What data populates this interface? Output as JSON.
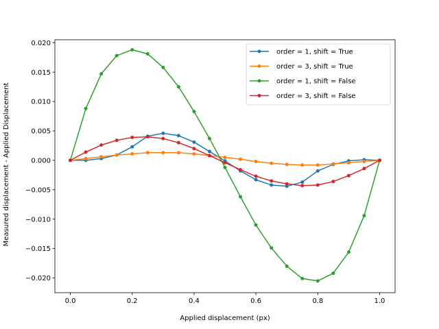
{
  "chart_data": {
    "type": "line",
    "title": "",
    "xlabel": "Applied displacement (px)",
    "ylabel": "Measured displacement - Applied Displacement",
    "xlim": [
      -0.05,
      1.05
    ],
    "ylim": [
      -0.0225,
      0.0205
    ],
    "x_ticks": [
      0.0,
      0.2,
      0.4,
      0.6,
      0.8,
      1.0
    ],
    "x_tick_labels": [
      "0.0",
      "0.2",
      "0.4",
      "0.6",
      "0.8",
      "1.0"
    ],
    "y_ticks": [
      -0.02,
      -0.015,
      -0.01,
      -0.005,
      0.0,
      0.005,
      0.01,
      0.015,
      0.02
    ],
    "y_tick_labels": [
      "−0.020",
      "−0.015",
      "−0.010",
      "−0.005",
      "0.000",
      "0.005",
      "0.010",
      "0.015",
      "0.020"
    ],
    "grid": false,
    "legend_position": "top-right",
    "x": [
      0.0,
      0.05,
      0.1,
      0.15,
      0.2,
      0.25,
      0.3,
      0.35,
      0.4,
      0.45,
      0.5,
      0.55,
      0.6,
      0.65,
      0.7,
      0.75,
      0.8,
      0.85,
      0.9,
      0.95,
      1.0
    ],
    "series": [
      {
        "name": "order = 1, shift = True",
        "color": "#1f77b4",
        "values": [
          0.0,
          0.0,
          0.0003,
          0.0009,
          0.0023,
          0.0041,
          0.0046,
          0.0042,
          0.0031,
          0.0015,
          -0.0001,
          -0.0018,
          -0.0033,
          -0.0042,
          -0.0044,
          -0.0037,
          -0.0018,
          -0.0007,
          -0.0001,
          0.0001,
          0.0
        ]
      },
      {
        "name": "order = 3, shift = True",
        "color": "#ff7f0e",
        "values": [
          0.0,
          0.0003,
          0.0006,
          0.0009,
          0.0011,
          0.0013,
          0.0013,
          0.0013,
          0.0011,
          0.0008,
          0.0005,
          0.0002,
          -0.0002,
          -0.0005,
          -0.0007,
          -0.0008,
          -0.0008,
          -0.0006,
          -0.0004,
          -0.0002,
          0.0
        ]
      },
      {
        "name": "order = 1, shift = False",
        "color": "#2ca02c",
        "values": [
          0.0,
          0.0088,
          0.0147,
          0.0178,
          0.0188,
          0.0181,
          0.0158,
          0.0125,
          0.0083,
          0.0037,
          -0.0012,
          -0.0062,
          -0.011,
          -0.0149,
          -0.018,
          -0.0201,
          -0.0205,
          -0.0192,
          -0.0156,
          -0.0094,
          0.0
        ]
      },
      {
        "name": "order = 3, shift = False",
        "color": "#d62728",
        "values": [
          0.0,
          0.0014,
          0.0026,
          0.0034,
          0.0039,
          0.004,
          0.0037,
          0.003,
          0.002,
          0.0008,
          -0.0004,
          -0.0016,
          -0.0027,
          -0.0035,
          -0.004,
          -0.0043,
          -0.0042,
          -0.0036,
          -0.0026,
          -0.0014,
          0.0
        ]
      }
    ]
  }
}
